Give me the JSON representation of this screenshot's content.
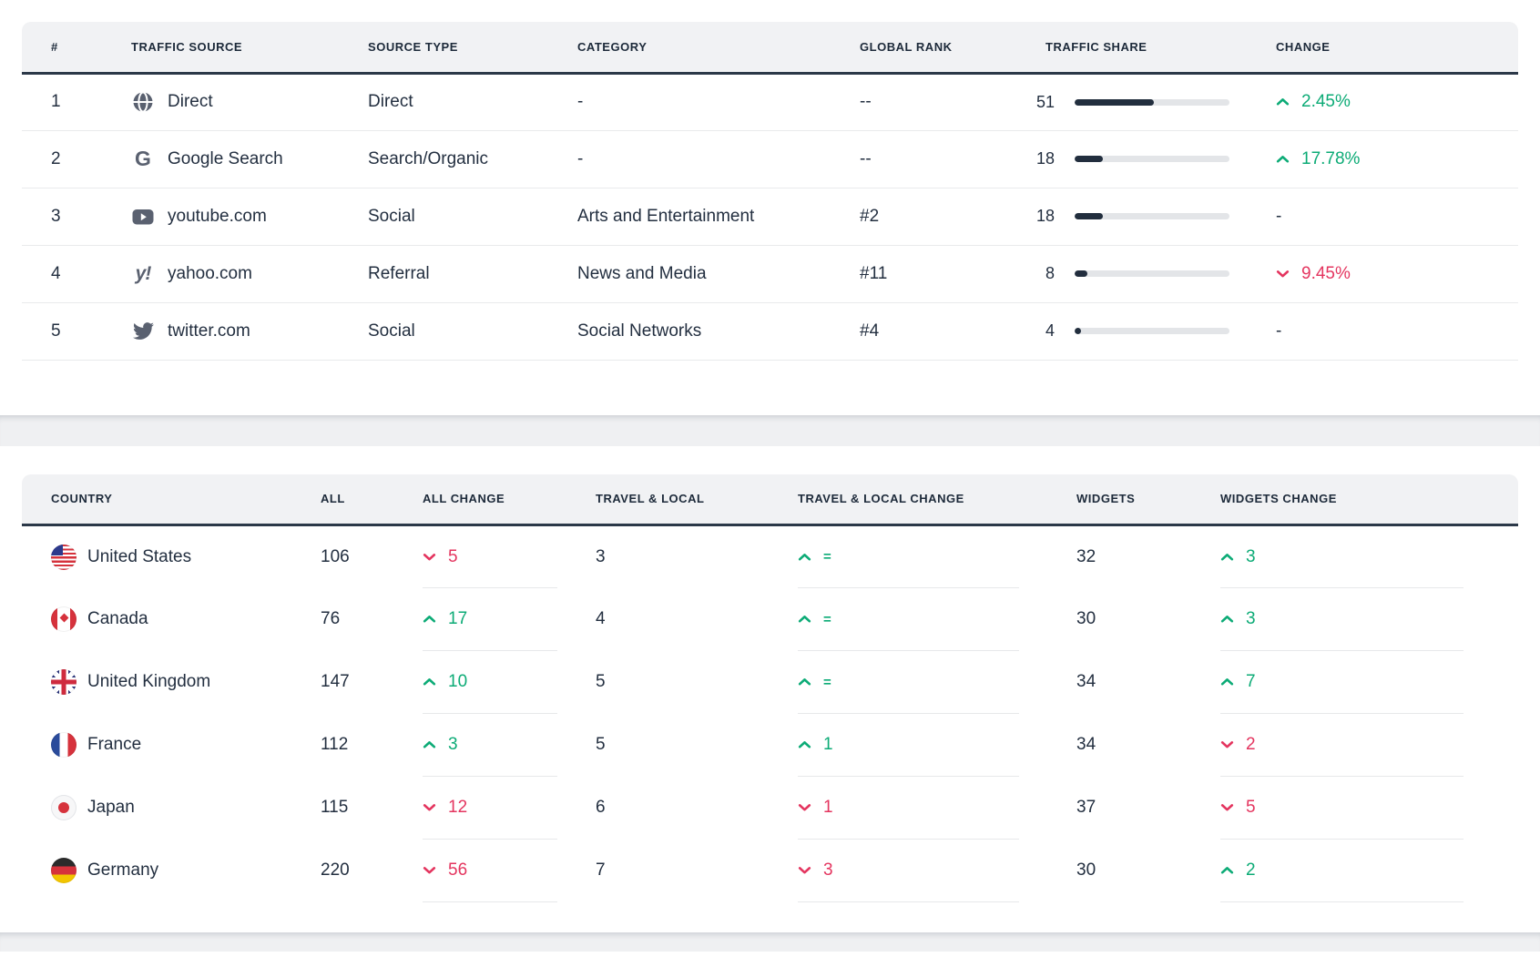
{
  "colors": {
    "green": "#0cab76",
    "red": "#e4355f",
    "dark_navy": "#232f40",
    "bar_fill": "#222e3e",
    "bar_track": "#e3e5e8",
    "header_bg": "#f1f2f4",
    "header_underline": "#2b3848",
    "gap_bg": "#eff0f2"
  },
  "icons": {
    "google_glyph": "G",
    "yahoo_glyph": "y!"
  },
  "traffic_table": {
    "headers": [
      "#",
      "TRAFFIC SOURCE",
      "SOURCE TYPE",
      "CATEGORY",
      "GLOBAL RANK",
      "TRAFFIC SHARE",
      "CHANGE"
    ],
    "rows": [
      {
        "rank": "1",
        "icon": "direct-globe-icon",
        "source": "Direct",
        "type": "Direct",
        "category": "-",
        "global_rank": "--",
        "share": 51,
        "change": {
          "dir": "up",
          "value": "2.45%"
        }
      },
      {
        "rank": "2",
        "icon": "google-icon",
        "source": "Google Search",
        "type": "Search/Organic",
        "category": "-",
        "global_rank": "--",
        "share": 18,
        "change": {
          "dir": "up",
          "value": "17.78%"
        }
      },
      {
        "rank": "3",
        "icon": "youtube-icon",
        "source": "youtube.com",
        "type": "Social",
        "category": "Arts and Entertainment",
        "global_rank": "#2",
        "share": 18,
        "change": {
          "dir": "none",
          "value": "-"
        }
      },
      {
        "rank": "4",
        "icon": "yahoo-icon",
        "source": "yahoo.com",
        "type": "Referral",
        "category": "News and Media",
        "global_rank": "#11",
        "share": 8,
        "change": {
          "dir": "down",
          "value": "9.45%"
        }
      },
      {
        "rank": "5",
        "icon": "twitter-icon",
        "source": "twitter.com",
        "type": "Social",
        "category": "Social Networks",
        "global_rank": "#4",
        "share": 4,
        "change": {
          "dir": "none",
          "value": "-"
        }
      }
    ]
  },
  "countries_table": {
    "headers": [
      "COUNTRY",
      "ALL",
      "ALL CHANGE",
      "TRAVEL & LOCAL",
      "TRAVEL & LOCAL CHANGE",
      "WIDGETS",
      "WIDGETS CHANGE"
    ],
    "rows": [
      {
        "flag": "us",
        "country": "United States",
        "all": "106",
        "all_change": {
          "dir": "down",
          "value": "5"
        },
        "travel_local": "3",
        "travel_local_change": {
          "dir": "up",
          "value": "="
        },
        "widgets": "32",
        "widgets_change": {
          "dir": "up",
          "value": "3"
        }
      },
      {
        "flag": "ca",
        "country": "Canada",
        "all": "76",
        "all_change": {
          "dir": "up",
          "value": "17"
        },
        "travel_local": "4",
        "travel_local_change": {
          "dir": "up",
          "value": "="
        },
        "widgets": "30",
        "widgets_change": {
          "dir": "up",
          "value": "3"
        }
      },
      {
        "flag": "gb",
        "country": "United Kingdom",
        "all": "147",
        "all_change": {
          "dir": "up",
          "value": "10"
        },
        "travel_local": "5",
        "travel_local_change": {
          "dir": "up",
          "value": "="
        },
        "widgets": "34",
        "widgets_change": {
          "dir": "up",
          "value": "7"
        }
      },
      {
        "flag": "fr",
        "country": "France",
        "all": "112",
        "all_change": {
          "dir": "up",
          "value": "3"
        },
        "travel_local": "5",
        "travel_local_change": {
          "dir": "up",
          "value": "1"
        },
        "widgets": "34",
        "widgets_change": {
          "dir": "down",
          "value": "2"
        }
      },
      {
        "flag": "jp",
        "country": "Japan",
        "all": "115",
        "all_change": {
          "dir": "down",
          "value": "12"
        },
        "travel_local": "6",
        "travel_local_change": {
          "dir": "down",
          "value": "1"
        },
        "widgets": "37",
        "widgets_change": {
          "dir": "down",
          "value": "5"
        }
      },
      {
        "flag": "de",
        "country": "Germany",
        "all": "220",
        "all_change": {
          "dir": "down",
          "value": "56"
        },
        "travel_local": "7",
        "travel_local_change": {
          "dir": "down",
          "value": "3"
        },
        "widgets": "30",
        "widgets_change": {
          "dir": "up",
          "value": "2"
        }
      }
    ]
  }
}
